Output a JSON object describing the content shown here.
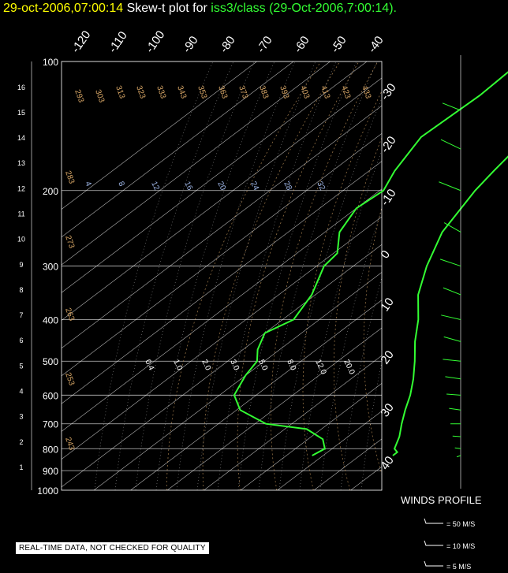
{
  "title": {
    "datetime": "29-oct-2006,07:00:14",
    "plot_prefix": "Skew-t plot for",
    "source": "iss3/class (29-Oct-2006,7:00:14)",
    "period": "."
  },
  "notice": "REAL-TIME DATA, NOT CHECKED FOR QUALITY",
  "winds_profile": {
    "label": "WINDS PROFILE",
    "key": [
      "= 50 M/S",
      "= 10 M/S",
      "= 5 M/S"
    ]
  },
  "colors": {
    "background": "#000000",
    "trace": "#33ff33",
    "grid": "#ffffff",
    "isentrope": "#d9a766",
    "mixing": "#9fb7e8",
    "title_date": "#ffff00"
  },
  "chart_data": {
    "type": "line",
    "title": "Skew-t plot for iss3/class (29-Oct-2006,7:00:14)",
    "y_axis_pressure_hPa": [
      100,
      200,
      300,
      400,
      500,
      600,
      700,
      800,
      900,
      1000
    ],
    "y_axis_height_km": [
      1,
      2,
      3,
      4,
      5,
      6,
      7,
      8,
      9,
      10,
      11,
      12,
      13,
      14,
      15,
      16
    ],
    "isotherm_labels_top": [
      "-120",
      "-110",
      "-100",
      "-90",
      "-80",
      "-70",
      "-60",
      "-50",
      "-40"
    ],
    "isotherm_labels_right": [
      "-30",
      "-20",
      "-10",
      "0",
      "10",
      "20",
      "30",
      "40"
    ],
    "isentrope_labels_top": [
      "293",
      "303",
      "313",
      "323",
      "333",
      "343",
      "353",
      "363",
      "373",
      "383",
      "393",
      "403",
      "413",
      "423",
      "433"
    ],
    "isentrope_labels_left": [
      "283",
      "273",
      "263",
      "253",
      "243"
    ],
    "mixing_ratio_labels_upper": [
      "4",
      "8",
      "12",
      "16",
      "20",
      "24",
      "28",
      "32"
    ],
    "mixing_ratio_labels_lower": [
      "0.4",
      "1.0",
      "2.0",
      "3.0",
      "5.0",
      "8.0",
      "12.0",
      "20.0"
    ],
    "series": [
      {
        "name": "temperature",
        "points": [
          [
            100,
            -68
          ],
          [
            120,
            -68
          ],
          [
            150,
            -69
          ],
          [
            180,
            -66
          ],
          [
            200,
            -64
          ],
          [
            250,
            -58
          ],
          [
            300,
            -50
          ],
          [
            350,
            -42
          ],
          [
            400,
            -33
          ],
          [
            450,
            -26
          ],
          [
            500,
            -19
          ],
          [
            550,
            -13
          ],
          [
            600,
            -8
          ],
          [
            650,
            -4
          ],
          [
            700,
            0
          ],
          [
            750,
            4
          ],
          [
            800,
            7
          ],
          [
            815,
            9
          ],
          [
            830,
            9
          ]
        ]
      },
      {
        "name": "dewpoint",
        "points": [
          [
            100,
            -98
          ],
          [
            120,
            -97
          ],
          [
            150,
            -98
          ],
          [
            180,
            -93
          ],
          [
            200,
            -89
          ],
          [
            220,
            -90
          ],
          [
            250,
            -86
          ],
          [
            280,
            -79
          ],
          [
            300,
            -78
          ],
          [
            350,
            -71
          ],
          [
            400,
            -67
          ],
          [
            430,
            -70
          ],
          [
            470,
            -66
          ],
          [
            500,
            -62
          ],
          [
            540,
            -60
          ],
          [
            600,
            -56
          ],
          [
            650,
            -49
          ],
          [
            700,
            -37
          ],
          [
            720,
            -24
          ],
          [
            760,
            -16
          ],
          [
            800,
            -12
          ],
          [
            830,
            -13
          ]
        ]
      }
    ],
    "winds": [
      [
        130,
        45,
        25
      ],
      [
        160,
        40,
        30
      ],
      [
        200,
        45,
        30
      ],
      [
        250,
        35,
        28
      ],
      [
        300,
        50,
        26
      ],
      [
        350,
        45,
        24
      ],
      [
        400,
        60,
        22
      ],
      [
        450,
        55,
        20
      ],
      [
        500,
        75,
        18
      ],
      [
        550,
        70,
        16
      ],
      [
        600,
        80,
        14
      ],
      [
        650,
        70,
        12
      ],
      [
        700,
        90,
        10
      ],
      [
        750,
        80,
        8
      ],
      [
        800,
        70,
        6
      ],
      [
        830,
        230,
        5
      ]
    ]
  }
}
